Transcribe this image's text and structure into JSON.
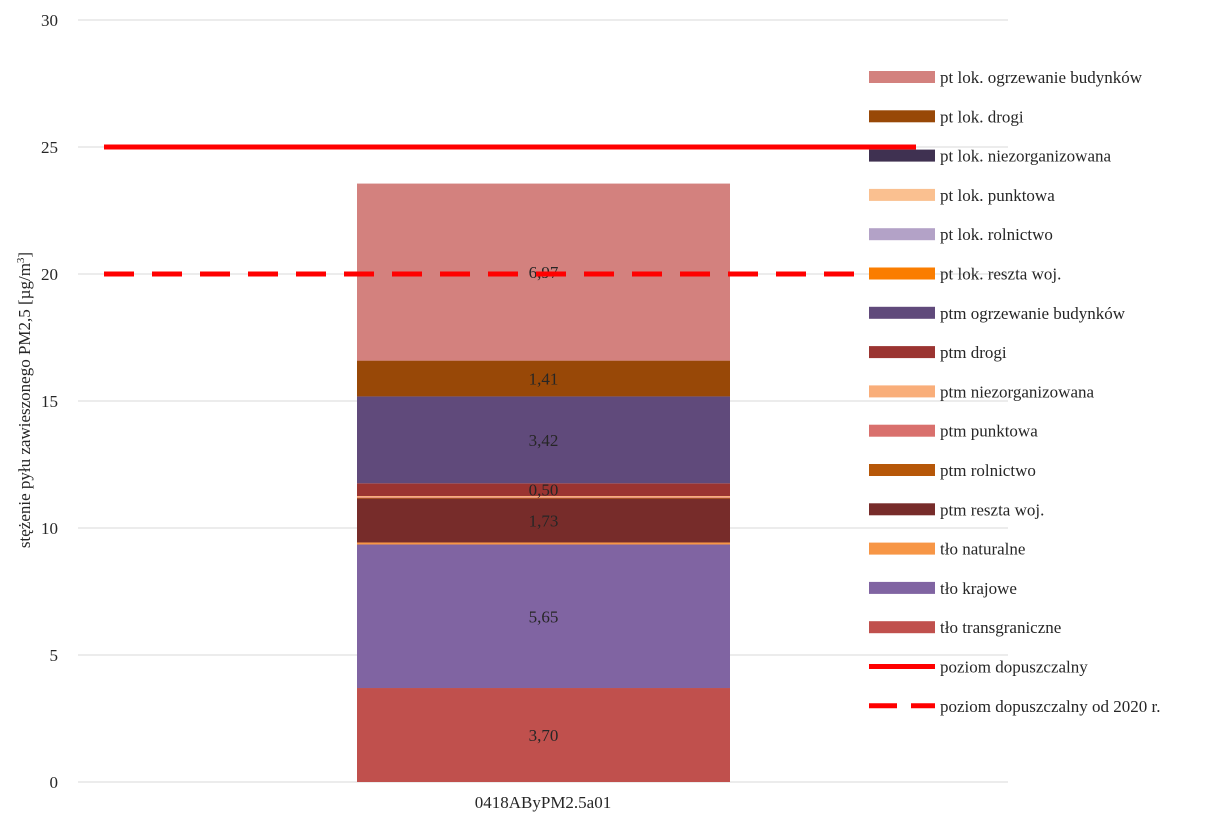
{
  "chart_data": {
    "type": "bar",
    "stacked": true,
    "categories": [
      "0418AByPM2.5a01"
    ],
    "ylabel": "stężenie pyłu zawieszonego PM2,5 [µg/m³]",
    "ylabel_main": "stężenie pyłu zawieszonego PM2,5 [µg/m",
    "ylabel_sup": "3",
    "ylabel_end": "]",
    "ylim": [
      0,
      30
    ],
    "yticks": [
      0,
      5,
      10,
      15,
      20,
      25,
      30
    ],
    "grid": true,
    "legend_position": "right",
    "series": [
      {
        "name": "tło transgraniczne",
        "color": "#c0504d",
        "values": [
          3.7
        ],
        "label": "3,70"
      },
      {
        "name": "tło krajowe",
        "color": "#8064a2",
        "values": [
          5.65
        ],
        "label": "5,65"
      },
      {
        "name": "tło naturalne",
        "color": "#f79646",
        "values": [
          0.08
        ],
        "label": ""
      },
      {
        "name": "ptm reszta woj.",
        "color": "#772c2a",
        "values": [
          1.73
        ],
        "label": "1,73"
      },
      {
        "name": "ptm rolnictwo",
        "color": "#b65708",
        "values": [
          0.02
        ],
        "label": ""
      },
      {
        "name": "ptm punktowa",
        "color": "#d9706d",
        "values": [
          0.03
        ],
        "label": ""
      },
      {
        "name": "ptm niezorganizowana",
        "color": "#f9ae7a",
        "values": [
          0.05
        ],
        "label": ""
      },
      {
        "name": "ptm drogi",
        "color": "#9b3431",
        "values": [
          0.5
        ],
        "label": "0,50"
      },
      {
        "name": "ptm ogrzewanie budynków",
        "color": "#604a7b",
        "values": [
          3.42
        ],
        "label": "3,42"
      },
      {
        "name": "pt lok. reszta woj.",
        "color": "#fa7d00",
        "values": [
          0.0
        ],
        "label": ""
      },
      {
        "name": "pt lok. rolnictwo",
        "color": "#b3a2c7",
        "values": [
          0.0
        ],
        "label": ""
      },
      {
        "name": "pt lok. punktowa",
        "color": "#fac090",
        "values": [
          0.0
        ],
        "label": ""
      },
      {
        "name": "pt lok. niezorganizowana",
        "color": "#3f3151",
        "values": [
          0.0
        ],
        "label": ""
      },
      {
        "name": "pt lok. drogi",
        "color": "#984807",
        "values": [
          1.41
        ],
        "label": "1,41"
      },
      {
        "name": "pt lok. ogrzewanie budynków",
        "color": "#d3817e",
        "values": [
          6.97
        ],
        "label": "6,97"
      }
    ],
    "reference_lines": [
      {
        "name": "poziom dopuszczalny",
        "value": 25,
        "color": "#ff0000",
        "style": "solid"
      },
      {
        "name": "poziom dopuszczalny od 2020 r.",
        "value": 20,
        "color": "#ff0000",
        "style": "dashed"
      }
    ],
    "legend_order": [
      "pt lok. ogrzewanie budynków",
      "pt lok. drogi",
      "pt lok. niezorganizowana",
      "pt lok. punktowa",
      "pt lok. rolnictwo",
      "pt lok. reszta woj.",
      "ptm ogrzewanie budynków",
      "ptm drogi",
      "ptm niezorganizowana",
      "ptm punktowa",
      "ptm rolnictwo",
      "ptm reszta woj.",
      "tło naturalne",
      "tło krajowe",
      "tło transgraniczne",
      "poziom dopuszczalny",
      "poziom dopuszczalny od 2020 r."
    ]
  }
}
